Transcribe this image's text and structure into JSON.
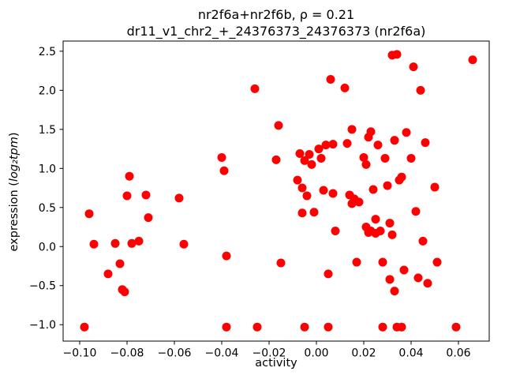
{
  "chart_data": {
    "type": "scatter",
    "title": "nr2f6a+nr2f6b, ρ = 0.21",
    "subtitle": "dr11_v1_chr2_+_24376373_24376373 (nr2f6a)",
    "xlabel": "activity",
    "ylabel": "expression (log₂tpm)",
    "ylabel_prefix": "expression (",
    "ylabel_math": "log₂tpm",
    "ylabel_suffix": ")",
    "xlim": [
      -0.107,
      0.073
    ],
    "ylim": [
      -1.21,
      2.63
    ],
    "xticks": [
      -0.1,
      -0.08,
      -0.06,
      -0.04,
      -0.02,
      0.0,
      0.02,
      0.04,
      0.06
    ],
    "yticks": [
      -1.0,
      -0.5,
      0.0,
      0.5,
      1.0,
      1.5,
      2.0,
      2.5
    ],
    "grid": false,
    "legend": "none",
    "point_color": "#ff0000",
    "marker": "circle",
    "points": [
      [
        -0.098,
        -1.03
      ],
      [
        -0.096,
        0.42
      ],
      [
        -0.094,
        0.03
      ],
      [
        -0.088,
        -0.35
      ],
      [
        -0.085,
        0.04
      ],
      [
        -0.083,
        -0.22
      ],
      [
        -0.082,
        -0.55
      ],
      [
        -0.081,
        -0.58
      ],
      [
        -0.08,
        0.65
      ],
      [
        -0.079,
        0.9
      ],
      [
        -0.078,
        0.04
      ],
      [
        -0.075,
        0.07
      ],
      [
        -0.072,
        0.66
      ],
      [
        -0.071,
        0.37
      ],
      [
        -0.058,
        0.62
      ],
      [
        -0.056,
        0.03
      ],
      [
        -0.04,
        1.14
      ],
      [
        -0.039,
        0.97
      ],
      [
        -0.038,
        -0.12
      ],
      [
        -0.038,
        -1.03
      ],
      [
        -0.026,
        2.02
      ],
      [
        -0.025,
        -1.03
      ],
      [
        -0.017,
        1.11
      ],
      [
        -0.016,
        1.55
      ],
      [
        -0.015,
        -0.21
      ],
      [
        -0.008,
        0.85
      ],
      [
        -0.007,
        1.19
      ],
      [
        -0.006,
        0.75
      ],
      [
        -0.006,
        0.43
      ],
      [
        -0.005,
        1.1
      ],
      [
        -0.005,
        -1.03
      ],
      [
        -0.004,
        0.65
      ],
      [
        -0.003,
        1.18
      ],
      [
        -0.002,
        1.05
      ],
      [
        -0.001,
        0.44
      ],
      [
        0.001,
        1.25
      ],
      [
        0.002,
        1.13
      ],
      [
        0.003,
        0.72
      ],
      [
        0.004,
        1.3
      ],
      [
        0.005,
        -0.35
      ],
      [
        0.005,
        -1.03
      ],
      [
        0.006,
        2.14
      ],
      [
        0.007,
        1.31
      ],
      [
        0.007,
        0.68
      ],
      [
        0.008,
        0.2
      ],
      [
        0.012,
        2.03
      ],
      [
        0.013,
        1.32
      ],
      [
        0.014,
        0.66
      ],
      [
        0.015,
        0.55
      ],
      [
        0.015,
        1.5
      ],
      [
        0.016,
        0.61
      ],
      [
        0.017,
        -0.2
      ],
      [
        0.018,
        0.57
      ],
      [
        0.02,
        1.14
      ],
      [
        0.021,
        1.05
      ],
      [
        0.021,
        0.25
      ],
      [
        0.022,
        1.4
      ],
      [
        0.022,
        0.18
      ],
      [
        0.023,
        1.47
      ],
      [
        0.023,
        0.2
      ],
      [
        0.024,
        0.73
      ],
      [
        0.025,
        0.35
      ],
      [
        0.025,
        0.17
      ],
      [
        0.026,
        1.3
      ],
      [
        0.027,
        0.2
      ],
      [
        0.028,
        -0.2
      ],
      [
        0.028,
        -1.03
      ],
      [
        0.029,
        1.13
      ],
      [
        0.03,
        0.78
      ],
      [
        0.031,
        0.3
      ],
      [
        0.031,
        -0.42
      ],
      [
        0.032,
        2.45
      ],
      [
        0.032,
        0.15
      ],
      [
        0.033,
        1.36
      ],
      [
        0.033,
        -0.57
      ],
      [
        0.034,
        2.46
      ],
      [
        0.034,
        -1.03
      ],
      [
        0.035,
        0.85
      ],
      [
        0.036,
        0.89
      ],
      [
        0.036,
        -1.03
      ],
      [
        0.037,
        -0.3
      ],
      [
        0.038,
        1.46
      ],
      [
        0.04,
        1.13
      ],
      [
        0.041,
        2.3
      ],
      [
        0.042,
        0.45
      ],
      [
        0.043,
        -0.4
      ],
      [
        0.044,
        2.0
      ],
      [
        0.045,
        0.07
      ],
      [
        0.046,
        1.33
      ],
      [
        0.047,
        -0.47
      ],
      [
        0.05,
        0.76
      ],
      [
        0.051,
        -0.2
      ],
      [
        0.059,
        -1.03
      ],
      [
        0.066,
        2.39
      ]
    ]
  }
}
